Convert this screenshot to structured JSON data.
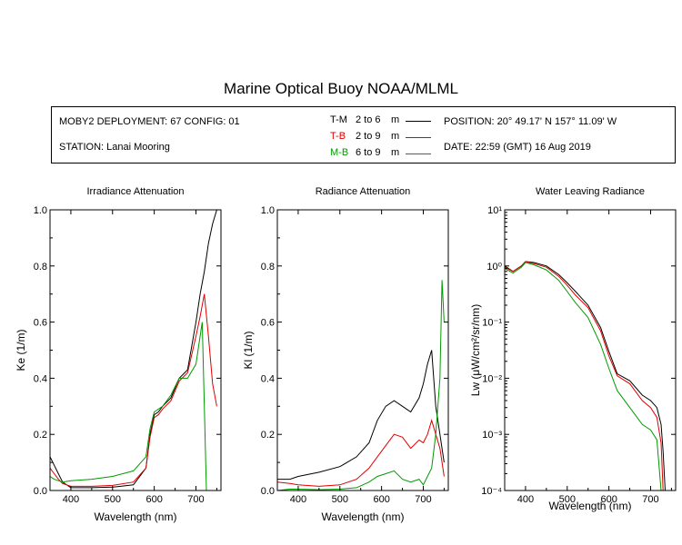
{
  "title": "Marine Optical Buoy NOAA/MLML",
  "info": {
    "deployment": "MOBY2 DEPLOYMENT: 67 CONFIG: 01",
    "station": "STATION: Lanai Mooring",
    "position": "POSITION: 20° 49.17' N   157° 11.09' W",
    "date": "DATE: 22:59 (GMT) 16 Aug 2019",
    "legend": [
      {
        "code": "T-M",
        "range": "2 to 6",
        "unit": "m",
        "color": "#000000"
      },
      {
        "code": "T-B",
        "range": "2 to 9",
        "unit": "m",
        "color": "#e00000"
      },
      {
        "code": "M-B",
        "range": "6 to 9",
        "unit": "m",
        "color": "#009900"
      }
    ]
  },
  "chart_data": [
    {
      "type": "line",
      "title": "Irradiance Attenuation",
      "xlabel": "Wavelength (nm)",
      "ylabel": "Ke (1/m)",
      "xlim": [
        350,
        760
      ],
      "ylim": [
        0,
        1
      ],
      "xticks": [
        400,
        500,
        600,
        700
      ],
      "yticks": [
        0.0,
        0.2,
        0.4,
        0.6,
        0.8,
        1.0
      ],
      "ytick_labels": [
        "0.0",
        "0.2",
        "0.4",
        "0.6",
        "0.8",
        "1.0"
      ],
      "series": [
        {
          "name": "T-M",
          "color": "#000000",
          "x": [
            350,
            360,
            370,
            380,
            400,
            450,
            500,
            550,
            580,
            590,
            600,
            610,
            620,
            640,
            660,
            680,
            700,
            710,
            720,
            730,
            740,
            750
          ],
          "y": [
            0.12,
            0.09,
            0.06,
            0.03,
            0.01,
            0.01,
            0.012,
            0.02,
            0.08,
            0.2,
            0.27,
            0.28,
            0.3,
            0.33,
            0.4,
            0.43,
            0.6,
            0.7,
            0.78,
            0.88,
            0.95,
            1.0
          ]
        },
        {
          "name": "T-B",
          "color": "#e00000",
          "x": [
            350,
            360,
            370,
            380,
            400,
            450,
            500,
            550,
            580,
            590,
            600,
            610,
            620,
            640,
            660,
            680,
            700,
            710,
            720,
            730,
            740,
            750
          ],
          "y": [
            0.08,
            0.06,
            0.04,
            0.025,
            0.015,
            0.015,
            0.018,
            0.03,
            0.08,
            0.19,
            0.26,
            0.27,
            0.29,
            0.32,
            0.39,
            0.42,
            0.55,
            0.62,
            0.7,
            0.55,
            0.38,
            0.3
          ]
        },
        {
          "name": "M-B",
          "color": "#009900",
          "x": [
            350,
            360,
            370,
            380,
            400,
            450,
            500,
            550,
            580,
            590,
            600,
            610,
            620,
            640,
            660,
            680,
            700,
            710,
            715,
            720,
            725
          ],
          "y": [
            0.05,
            0.04,
            0.035,
            0.03,
            0.035,
            0.04,
            0.05,
            0.07,
            0.12,
            0.22,
            0.28,
            0.29,
            0.3,
            0.34,
            0.4,
            0.4,
            0.45,
            0.55,
            0.6,
            0.3,
            0.0
          ]
        }
      ]
    },
    {
      "type": "line",
      "title": "Radiance Attenuation",
      "xlabel": "Wavelength (nm)",
      "ylabel": "Kl (1/m)",
      "xlim": [
        350,
        760
      ],
      "ylim": [
        0,
        1
      ],
      "xticks": [
        400,
        500,
        600,
        700
      ],
      "yticks": [
        0.0,
        0.2,
        0.4,
        0.6,
        0.8,
        1.0
      ],
      "ytick_labels": [
        "0.0",
        "0.2",
        "0.4",
        "0.6",
        "0.8",
        "1.0"
      ],
      "series": [
        {
          "name": "T-M",
          "color": "#000000",
          "x": [
            350,
            380,
            400,
            450,
            500,
            540,
            570,
            590,
            610,
            630,
            650,
            670,
            690,
            700,
            710,
            720,
            730,
            740,
            750
          ],
          "y": [
            0.04,
            0.04,
            0.05,
            0.065,
            0.085,
            0.12,
            0.17,
            0.25,
            0.3,
            0.32,
            0.3,
            0.28,
            0.33,
            0.38,
            0.45,
            0.5,
            0.3,
            0.2,
            0.1
          ]
        },
        {
          "name": "T-B",
          "color": "#e00000",
          "x": [
            350,
            380,
            400,
            450,
            500,
            540,
            570,
            590,
            610,
            630,
            650,
            670,
            690,
            700,
            710,
            720,
            730,
            740,
            750
          ],
          "y": [
            0.03,
            0.025,
            0.02,
            0.015,
            0.02,
            0.04,
            0.08,
            0.12,
            0.16,
            0.2,
            0.19,
            0.15,
            0.18,
            0.17,
            0.2,
            0.25,
            0.2,
            0.15,
            0.05
          ]
        },
        {
          "name": "M-B",
          "color": "#009900",
          "x": [
            350,
            380,
            400,
            450,
            500,
            540,
            570,
            590,
            610,
            630,
            650,
            670,
            690,
            700,
            710,
            720,
            730,
            740,
            745,
            750
          ],
          "y": [
            0.0,
            0.005,
            0.005,
            0.003,
            0.005,
            0.01,
            0.03,
            0.05,
            0.06,
            0.07,
            0.04,
            0.03,
            0.04,
            0.02,
            0.05,
            0.08,
            0.2,
            0.4,
            0.75,
            0.6
          ]
        }
      ]
    },
    {
      "type": "line",
      "title": "Water Leaving Radiance",
      "xlabel": "Wavelength (nm)",
      "ylabel": "Lw (μW/cm²/sr/nm)",
      "yscale": "log",
      "xlim": [
        350,
        760
      ],
      "ylim": [
        0.0001,
        10
      ],
      "xticks": [
        400,
        500,
        600,
        700
      ],
      "yticks": [
        0.0001,
        0.001,
        0.01,
        0.1,
        1,
        10
      ],
      "ytick_labels": [
        "10⁻⁴",
        "10⁻³",
        "10⁻²",
        "10⁻¹",
        "10⁰",
        "10¹"
      ],
      "series": [
        {
          "name": "T-M",
          "color": "#000000",
          "x": [
            350,
            370,
            390,
            400,
            420,
            450,
            480,
            500,
            520,
            550,
            580,
            600,
            620,
            650,
            680,
            700,
            715,
            725,
            730,
            735
          ],
          "y": [
            1.0,
            0.8,
            1.0,
            1.2,
            1.15,
            1.0,
            0.7,
            0.5,
            0.35,
            0.2,
            0.08,
            0.03,
            0.012,
            0.009,
            0.005,
            0.004,
            0.003,
            0.0015,
            0.0005,
            0.0001
          ]
        },
        {
          "name": "T-B",
          "color": "#e00000",
          "x": [
            350,
            370,
            390,
            400,
            420,
            450,
            480,
            500,
            520,
            550,
            580,
            600,
            620,
            650,
            680,
            700,
            715,
            725,
            730
          ],
          "y": [
            0.95,
            0.8,
            1.0,
            1.2,
            1.1,
            0.95,
            0.65,
            0.45,
            0.3,
            0.18,
            0.07,
            0.025,
            0.011,
            0.008,
            0.004,
            0.003,
            0.002,
            0.0007,
            0.0001
          ]
        },
        {
          "name": "M-B",
          "color": "#009900",
          "x": [
            350,
            370,
            390,
            400,
            420,
            450,
            480,
            500,
            520,
            550,
            580,
            600,
            620,
            650,
            680,
            700,
            715,
            725
          ],
          "y": [
            0.9,
            0.75,
            0.95,
            1.15,
            1.05,
            0.85,
            0.55,
            0.35,
            0.22,
            0.12,
            0.04,
            0.015,
            0.006,
            0.003,
            0.0015,
            0.0012,
            0.0008,
            0.0001
          ]
        }
      ]
    }
  ]
}
